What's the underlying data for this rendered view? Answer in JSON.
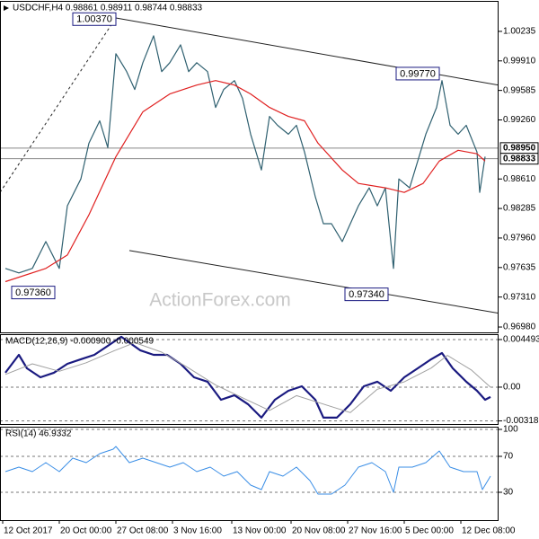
{
  "chart_data": [
    {
      "type": "line",
      "title": "USDCHF,H4  0.98861 0.98911 0.98744 0.98833",
      "watermark": "ActionForex.com",
      "xlim": [
        0,
        185
      ],
      "ylim": [
        0.96921,
        1.00531
      ],
      "yticks": [
        1.00235,
        {
          "value": 0.9991,
          "label": "0.99910"
        },
        0.99585,
        {
          "value": 0.9926,
          "label": "0.99260"
        },
        {
          "value": 0.9861,
          "label": "0.98610"
        },
        0.98285,
        {
          "value": 0.9796,
          "label": "0.97960"
        },
        0.97635,
        {
          "value": 0.9731,
          "label": "0.97310"
        },
        {
          "value": 0.9698,
          "label": "0.96980"
        }
      ],
      "grid": false,
      "series": [
        {
          "color": "#2f6070",
          "x": [
            2,
            7,
            12,
            17,
            22,
            25,
            30,
            33,
            37,
            40,
            43,
            47,
            50,
            53,
            57,
            60,
            63,
            67,
            70,
            73,
            77,
            80,
            83,
            87,
            90,
            93,
            97,
            100,
            103,
            107,
            110,
            113,
            117,
            120,
            123,
            127,
            130,
            133,
            137,
            140,
            143,
            146,
            148,
            152,
            155,
            158,
            162,
            164,
            167,
            170,
            173,
            177,
            178,
            180
          ],
          "values": [
            0.97625,
            0.97576,
            0.97625,
            0.97921,
            0.97625,
            0.98315,
            0.9861,
            0.99004,
            0.9925,
            0.98955,
            0.99989,
            0.99792,
            0.99595,
            0.9989,
            1.00186,
            0.99792,
            0.9989,
            1.00087,
            0.99792,
            0.9989,
            0.99792,
            0.99398,
            0.99595,
            0.99693,
            0.99496,
            0.99103,
            0.98709,
            0.99299,
            0.99201,
            0.99103,
            0.99201,
            0.98906,
            0.98413,
            0.98118,
            0.98118,
            0.97921,
            0.98118,
            0.98315,
            0.98512,
            0.98315,
            0.98512,
            0.97625,
            0.9861,
            0.98512,
            0.98807,
            0.99103,
            0.99398,
            0.99693,
            0.99201,
            0.99103,
            0.99201,
            0.98906,
            0.98462,
            0.98856
          ]
        },
        {
          "color": "#e02020",
          "x": [
            2,
            17,
            25,
            33,
            43,
            53,
            63,
            73,
            80,
            87,
            93,
            100,
            107,
            113,
            118,
            127,
            133,
            143,
            150,
            157,
            163,
            170,
            177,
            180
          ],
          "values": [
            0.9748,
            0.97625,
            0.97773,
            0.98216,
            0.98856,
            0.99349,
            0.99546,
            0.99644,
            0.99693,
            0.99644,
            0.99546,
            0.99398,
            0.99299,
            0.9925,
            0.99004,
            0.98709,
            0.98561,
            0.98512,
            0.98462,
            0.98561,
            0.98807,
            0.98926,
            0.98887,
            0.98807
          ]
        }
      ],
      "trendlines": [
        {
          "x": [
            0,
            43
          ],
          "values": [
            0.98462,
            1.00383
          ],
          "dashed": true
        },
        {
          "x": [
            43,
            185
          ],
          "values": [
            1.00383,
            0.99644
          ],
          "dashed": false
        },
        {
          "x": [
            48,
            185
          ],
          "values": [
            0.97822,
            0.97133
          ],
          "dashed": false
        }
      ],
      "levels": [
        {
          "value": 0.9895,
          "label": "0.98950"
        },
        {
          "value": 0.98833,
          "label": "0.98833"
        }
      ],
      "annotations": [
        {
          "x": 43,
          "value": 1.0037,
          "label": "1.00370"
        },
        {
          "x": 163,
          "value": 0.9977,
          "label": "0.99770"
        },
        {
          "x": 3,
          "value": 0.9736,
          "label": "0.97360"
        },
        {
          "x": 144,
          "value": 0.9734,
          "label": "0.97340"
        }
      ]
    },
    {
      "type": "line",
      "title": "MACD(12,26,9) -0.000900 -0.000549",
      "xlim": [
        0,
        185
      ],
      "ylim": [
        -0.00348,
        0.005
      ],
      "yticks": [
        0.004493,
        {
          "value": 0,
          "label": "0.00"
        },
        -0.003186
      ],
      "grid": true,
      "series": [
        {
          "color": "#1a1a80",
          "width": 2.2,
          "x": [
            2,
            7,
            10,
            15,
            20,
            25,
            30,
            35,
            40,
            45,
            52,
            57,
            62,
            67,
            72,
            77,
            82,
            87,
            92,
            97,
            102,
            107,
            112,
            117,
            120,
            125,
            130,
            135,
            140,
            145,
            150,
            155,
            160,
            164,
            168,
            173,
            177,
            180,
            182
          ],
          "values": [
            0.00136,
            0.00305,
            0.00178,
            0.00093,
            0.00136,
            0.0022,
            0.00263,
            0.00305,
            0.0039,
            0.00475,
            0.00348,
            0.00305,
            0.00305,
            0.0022,
            0.00093,
            0.00051,
            -0.00119,
            -0.00076,
            -0.00161,
            -0.00288,
            -0.00119,
            -0.00034,
            8e-05,
            -0.00119,
            -0.00288,
            -0.00288,
            -0.00161,
            8e-05,
            0.00051,
            -0.00034,
            0.00093,
            0.00178,
            0.00263,
            0.00322,
            0.00178,
            0.00051,
            -0.00034,
            -0.00119,
            -0.00093
          ]
        },
        {
          "color": "#a0a0a0",
          "width": 1,
          "x": [
            2,
            12,
            22,
            32,
            42,
            50,
            60,
            70,
            80,
            90,
            100,
            110,
            120,
            130,
            140,
            150,
            160,
            166,
            175,
            182
          ],
          "values": [
            0.0012,
            0.0022,
            0.0015,
            0.0023,
            0.0034,
            0.0042,
            0.0033,
            0.0018,
            0.0002,
            -0.001,
            -0.0022,
            -0.0008,
            -0.0016,
            -0.0024,
            -0.0002,
            0.0005,
            0.0018,
            0.003,
            0.0016,
            0
          ]
        }
      ]
    },
    {
      "type": "line",
      "title": "RSI(14) 46.9332",
      "xlim": [
        0,
        185
      ],
      "ylim": [
        0,
        100
      ],
      "yticks": [
        100,
        70,
        30
      ],
      "grid": true,
      "xticks": [
        {
          "value": 1,
          "label": "12 Oct 2017"
        },
        {
          "value": 22,
          "label": "20 Oct 00:00"
        },
        {
          "value": 43,
          "label": "27 Oct 08:00"
        },
        {
          "value": 64,
          "label": "3 Nov 16:00"
        },
        {
          "value": 86,
          "label": "13 Nov 00:00"
        },
        {
          "value": 108,
          "label": "20 Nov 08:00"
        },
        {
          "value": 129,
          "label": "27 Nov 16:00"
        },
        {
          "value": 150,
          "label": "5 Dec 00:00"
        },
        {
          "value": 171,
          "label": "12 Dec 08:00"
        }
      ],
      "series": [
        {
          "color": "#3a8ee6",
          "width": 1,
          "x": [
            2,
            7,
            12,
            17,
            22,
            27,
            32,
            37,
            42,
            43,
            48,
            53,
            58,
            63,
            68,
            73,
            78,
            83,
            88,
            93,
            97,
            100,
            105,
            110,
            115,
            118,
            123,
            128,
            133,
            138,
            143,
            146,
            148,
            153,
            158,
            163,
            167,
            172,
            177,
            179,
            182
          ],
          "values": [
            53,
            58,
            53,
            63,
            53,
            68,
            63,
            73,
            78,
            81,
            63,
            68,
            63,
            58,
            63,
            53,
            58,
            48,
            53,
            38,
            33,
            53,
            48,
            58,
            43,
            28,
            28,
            38,
            58,
            63,
            53,
            30,
            58,
            58,
            63,
            76,
            58,
            53,
            53,
            33,
            48
          ]
        }
      ]
    }
  ]
}
